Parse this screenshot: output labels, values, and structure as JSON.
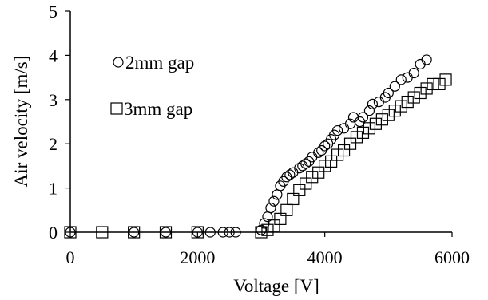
{
  "chart_data": {
    "type": "scatter",
    "xlabel": "Voltage [V]",
    "ylabel": "Air velocity [m/s]",
    "xlim": [
      0,
      6000
    ],
    "ylim": [
      0,
      5
    ],
    "xticks": [
      "0",
      "2000",
      "4000",
      "6000"
    ],
    "yticks": [
      "0",
      "1",
      "2",
      "3",
      "4",
      "5"
    ],
    "grid": false,
    "legend_position": "left",
    "series": [
      {
        "name": "2mm gap",
        "marker": "circle",
        "points": [
          [
            0,
            0
          ],
          [
            1000,
            0
          ],
          [
            1500,
            0
          ],
          [
            2000,
            0
          ],
          [
            2200,
            0
          ],
          [
            2400,
            0
          ],
          [
            2500,
            0
          ],
          [
            2600,
            0
          ],
          [
            3000,
            0.05
          ],
          [
            3050,
            0.2
          ],
          [
            3100,
            0.35
          ],
          [
            3150,
            0.55
          ],
          [
            3200,
            0.7
          ],
          [
            3250,
            0.85
          ],
          [
            3300,
            1.05
          ],
          [
            3350,
            1.15
          ],
          [
            3400,
            1.25
          ],
          [
            3450,
            1.3
          ],
          [
            3500,
            1.35
          ],
          [
            3600,
            1.45
          ],
          [
            3650,
            1.5
          ],
          [
            3700,
            1.55
          ],
          [
            3750,
            1.6
          ],
          [
            3800,
            1.7
          ],
          [
            3900,
            1.8
          ],
          [
            3950,
            1.85
          ],
          [
            4000,
            1.95
          ],
          [
            4050,
            2.0
          ],
          [
            4100,
            2.1
          ],
          [
            4150,
            2.2
          ],
          [
            4200,
            2.3
          ],
          [
            4300,
            2.35
          ],
          [
            4400,
            2.45
          ],
          [
            4450,
            2.6
          ],
          [
            4550,
            2.5
          ],
          [
            4600,
            2.6
          ],
          [
            4700,
            2.75
          ],
          [
            4750,
            2.9
          ],
          [
            4850,
            2.95
          ],
          [
            4950,
            3.05
          ],
          [
            5000,
            3.15
          ],
          [
            5100,
            3.3
          ],
          [
            5200,
            3.45
          ],
          [
            5300,
            3.5
          ],
          [
            5400,
            3.6
          ],
          [
            5500,
            3.8
          ],
          [
            5600,
            3.9
          ]
        ]
      },
      {
        "name": "3mm gap",
        "marker": "square",
        "points": [
          [
            0,
            0
          ],
          [
            500,
            0
          ],
          [
            1000,
            0
          ],
          [
            1500,
            0
          ],
          [
            2000,
            0
          ],
          [
            3000,
            0
          ],
          [
            3100,
            0.05
          ],
          [
            3200,
            0.15
          ],
          [
            3300,
            0.3
          ],
          [
            3400,
            0.5
          ],
          [
            3500,
            0.75
          ],
          [
            3600,
            0.95
          ],
          [
            3700,
            1.1
          ],
          [
            3800,
            1.25
          ],
          [
            3900,
            1.35
          ],
          [
            4000,
            1.5
          ],
          [
            4100,
            1.6
          ],
          [
            4200,
            1.75
          ],
          [
            4300,
            1.85
          ],
          [
            4400,
            2.0
          ],
          [
            4500,
            2.15
          ],
          [
            4600,
            2.25
          ],
          [
            4700,
            2.35
          ],
          [
            4800,
            2.45
          ],
          [
            4900,
            2.55
          ],
          [
            5000,
            2.65
          ],
          [
            5100,
            2.75
          ],
          [
            5200,
            2.85
          ],
          [
            5300,
            2.95
          ],
          [
            5400,
            3.05
          ],
          [
            5500,
            3.15
          ],
          [
            5600,
            3.25
          ],
          [
            5700,
            3.35
          ],
          [
            5800,
            3.35
          ],
          [
            5900,
            3.45
          ]
        ]
      }
    ]
  }
}
